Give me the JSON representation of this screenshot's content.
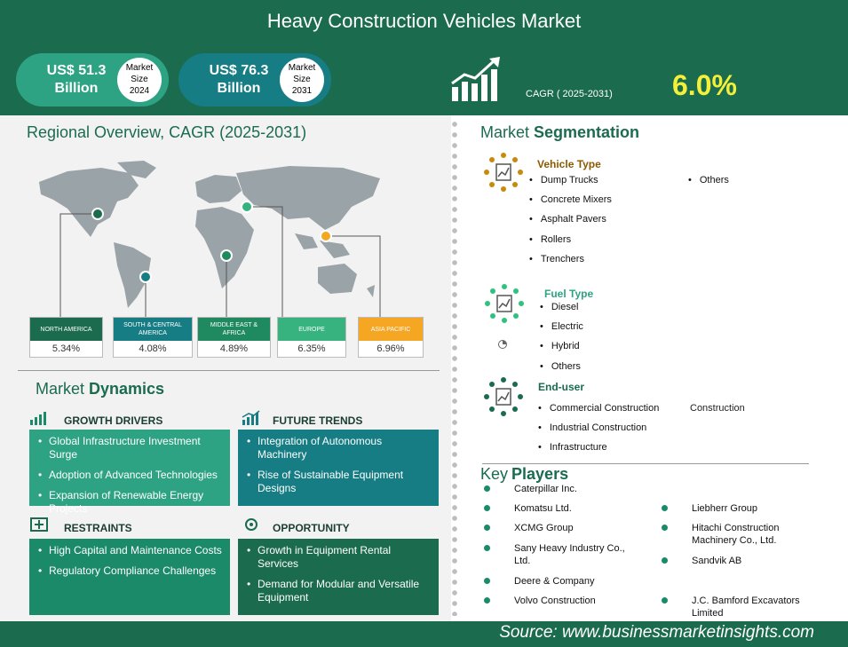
{
  "header": {
    "title": "Heavy Construction Vehicles Market"
  },
  "market_size": {
    "value_2024": "US$ 51.3",
    "unit_2024": "Billion",
    "tag_2024": [
      "Market",
      "Size",
      "2024"
    ],
    "value_2031": "US$ 76.3",
    "unit_2031": "Billion",
    "tag_2031": [
      "Market",
      "Size",
      "2031"
    ],
    "cagr_label": "CAGR ( 2025-2031)",
    "cagr_value": "6.0%"
  },
  "regional": {
    "title": "Regional Overview, CAGR (2025-2031)",
    "regions": [
      {
        "name": "NORTH AMERICA",
        "value": "5.34%",
        "color": "#1b6b4f"
      },
      {
        "name": "SOUTH & CENTRAL AMERICA",
        "value": "4.08%",
        "color": "#177d84"
      },
      {
        "name": "MIDDLE EAST & AFRICA",
        "value": "4.89%",
        "color": "#1f8a60"
      },
      {
        "name": "EUROPE",
        "value": "6.35%",
        "color": "#36b37e"
      },
      {
        "name": "ASIA PACIFIC",
        "value": "6.96%",
        "color": "#f5a623"
      }
    ]
  },
  "dynamics": {
    "title_a": "Market ",
    "title_b": "Dynamics",
    "growth_drivers": {
      "title": "GROWTH DRIVERS",
      "items": [
        "Global Infrastructure Investment Surge",
        "Adoption of Advanced Technologies",
        "Expansion of Renewable Energy Projects"
      ]
    },
    "future_trends": {
      "title": "FUTURE TRENDS",
      "items": [
        "Integration of Autonomous Machinery",
        "Rise of Sustainable Equipment Designs"
      ]
    },
    "restraints": {
      "title": "RESTRAINTS",
      "items": [
        "High Capital and Maintenance Costs",
        "Regulatory Compliance Challenges"
      ]
    },
    "opportunity": {
      "title": "OPPORTUNITY",
      "items": [
        "Growth in Equipment Rental Services",
        "Demand for Modular and Versatile Equipment"
      ]
    }
  },
  "segmentation": {
    "title_a": "Market ",
    "title_b": "Segmentation",
    "vehicle_type": {
      "title": "Vehicle Type",
      "items": [
        "Dump Trucks",
        "Concrete Mixers",
        "Asphalt Pavers",
        "Rollers",
        "Trenchers"
      ],
      "items_col2": [
        "Others"
      ]
    },
    "fuel_type": {
      "title": "Fuel Type",
      "items": [
        "Diesel",
        "Electric",
        "Hybrid",
        "Others"
      ]
    },
    "end_user": {
      "title": "End-user",
      "items": [
        "Commercial Construction",
        "Industrial Construction",
        "Infrastructure"
      ],
      "col2_text": "Construction"
    }
  },
  "key_players": {
    "title_a": "Key",
    "title_b": "Players",
    "col1": [
      "Caterpillar Inc.",
      "Komatsu Ltd.",
      "XCMG Group",
      "Sany Heavy Industry Co., Ltd.",
      "Deere & Company",
      "Volvo Construction"
    ],
    "col2": [
      "Liebherr Group",
      "Hitachi Construction Machinery Co., Ltd.",
      "Sandvik AB",
      "J.C. Bamford Excavators Limited"
    ]
  },
  "footer": {
    "source": "Source:  www.businessmarketinsights.com"
  },
  "colors": {
    "brand": "#1b6b4f",
    "accent": "#f4f03a",
    "gold": "#c98a0c"
  }
}
